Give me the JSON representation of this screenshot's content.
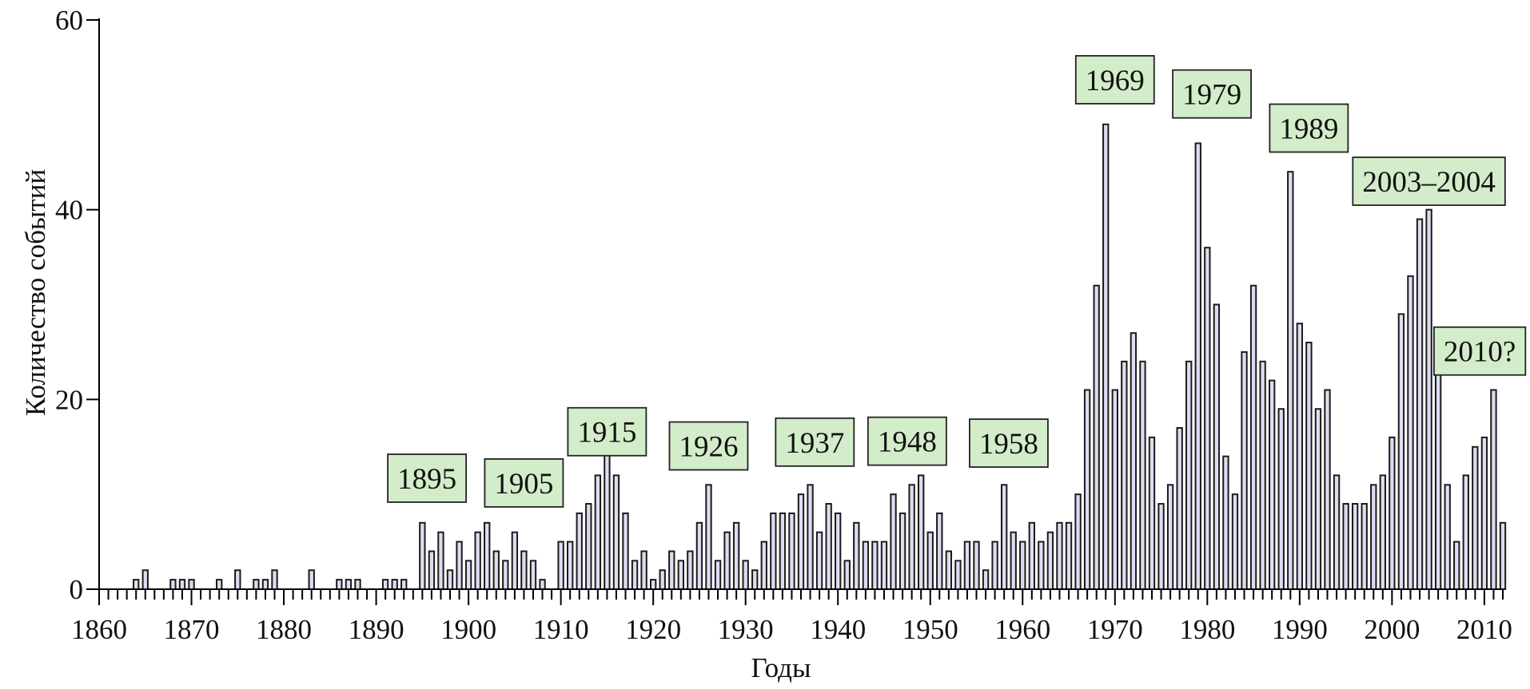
{
  "chart_data": {
    "type": "bar",
    "xlabel": "Годы",
    "ylabel": "Количество событий",
    "xlim": [
      1860,
      2012
    ],
    "ylim": [
      0,
      60
    ],
    "x_ticks": [
      1860,
      1870,
      1880,
      1890,
      1900,
      1910,
      1920,
      1930,
      1940,
      1950,
      1960,
      1970,
      1980,
      1990,
      2000,
      2010
    ],
    "y_ticks": [
      0,
      20,
      40,
      60
    ],
    "minor_x_tick_step": 1,
    "grid": false,
    "bar_color": "#dcdcf2",
    "annotation_color": "#d3ecc9",
    "points": [
      {
        "x": 1864,
        "y": 1
      },
      {
        "x": 1865,
        "y": 2
      },
      {
        "x": 1868,
        "y": 1
      },
      {
        "x": 1869,
        "y": 1
      },
      {
        "x": 1870,
        "y": 1
      },
      {
        "x": 1873,
        "y": 1
      },
      {
        "x": 1875,
        "y": 2
      },
      {
        "x": 1877,
        "y": 1
      },
      {
        "x": 1878,
        "y": 1
      },
      {
        "x": 1879,
        "y": 2
      },
      {
        "x": 1883,
        "y": 2
      },
      {
        "x": 1886,
        "y": 1
      },
      {
        "x": 1887,
        "y": 1
      },
      {
        "x": 1888,
        "y": 1
      },
      {
        "x": 1891,
        "y": 1
      },
      {
        "x": 1892,
        "y": 1
      },
      {
        "x": 1893,
        "y": 1
      },
      {
        "x": 1895,
        "y": 7
      },
      {
        "x": 1896,
        "y": 4
      },
      {
        "x": 1897,
        "y": 6
      },
      {
        "x": 1898,
        "y": 2
      },
      {
        "x": 1899,
        "y": 5
      },
      {
        "x": 1900,
        "y": 3
      },
      {
        "x": 1901,
        "y": 6
      },
      {
        "x": 1902,
        "y": 7
      },
      {
        "x": 1903,
        "y": 4
      },
      {
        "x": 1904,
        "y": 3
      },
      {
        "x": 1905,
        "y": 6
      },
      {
        "x": 1906,
        "y": 4
      },
      {
        "x": 1907,
        "y": 3
      },
      {
        "x": 1908,
        "y": 1
      },
      {
        "x": 1910,
        "y": 5
      },
      {
        "x": 1911,
        "y": 5
      },
      {
        "x": 1912,
        "y": 8
      },
      {
        "x": 1913,
        "y": 9
      },
      {
        "x": 1914,
        "y": 12
      },
      {
        "x": 1915,
        "y": 15
      },
      {
        "x": 1916,
        "y": 12
      },
      {
        "x": 1917,
        "y": 8
      },
      {
        "x": 1918,
        "y": 3
      },
      {
        "x": 1919,
        "y": 4
      },
      {
        "x": 1920,
        "y": 1
      },
      {
        "x": 1921,
        "y": 2
      },
      {
        "x": 1922,
        "y": 4
      },
      {
        "x": 1923,
        "y": 3
      },
      {
        "x": 1924,
        "y": 4
      },
      {
        "x": 1925,
        "y": 7
      },
      {
        "x": 1926,
        "y": 11
      },
      {
        "x": 1927,
        "y": 3
      },
      {
        "x": 1928,
        "y": 6
      },
      {
        "x": 1929,
        "y": 7
      },
      {
        "x": 1930,
        "y": 3
      },
      {
        "x": 1931,
        "y": 2
      },
      {
        "x": 1932,
        "y": 5
      },
      {
        "x": 1933,
        "y": 8
      },
      {
        "x": 1934,
        "y": 8
      },
      {
        "x": 1935,
        "y": 8
      },
      {
        "x": 1936,
        "y": 10
      },
      {
        "x": 1937,
        "y": 11
      },
      {
        "x": 1938,
        "y": 6
      },
      {
        "x": 1939,
        "y": 9
      },
      {
        "x": 1940,
        "y": 8
      },
      {
        "x": 1941,
        "y": 3
      },
      {
        "x": 1942,
        "y": 7
      },
      {
        "x": 1943,
        "y": 5
      },
      {
        "x": 1944,
        "y": 5
      },
      {
        "x": 1945,
        "y": 5
      },
      {
        "x": 1946,
        "y": 10
      },
      {
        "x": 1947,
        "y": 8
      },
      {
        "x": 1948,
        "y": 11
      },
      {
        "x": 1949,
        "y": 12
      },
      {
        "x": 1950,
        "y": 6
      },
      {
        "x": 1951,
        "y": 8
      },
      {
        "x": 1952,
        "y": 4
      },
      {
        "x": 1953,
        "y": 3
      },
      {
        "x": 1954,
        "y": 5
      },
      {
        "x": 1955,
        "y": 5
      },
      {
        "x": 1956,
        "y": 2
      },
      {
        "x": 1957,
        "y": 5
      },
      {
        "x": 1958,
        "y": 11
      },
      {
        "x": 1959,
        "y": 6
      },
      {
        "x": 1960,
        "y": 5
      },
      {
        "x": 1961,
        "y": 7
      },
      {
        "x": 1962,
        "y": 5
      },
      {
        "x": 1963,
        "y": 6
      },
      {
        "x": 1964,
        "y": 7
      },
      {
        "x": 1965,
        "y": 7
      },
      {
        "x": 1966,
        "y": 10
      },
      {
        "x": 1967,
        "y": 21
      },
      {
        "x": 1968,
        "y": 32
      },
      {
        "x": 1969,
        "y": 49
      },
      {
        "x": 1970,
        "y": 21
      },
      {
        "x": 1971,
        "y": 24
      },
      {
        "x": 1972,
        "y": 27
      },
      {
        "x": 1973,
        "y": 24
      },
      {
        "x": 1974,
        "y": 16
      },
      {
        "x": 1975,
        "y": 9
      },
      {
        "x": 1976,
        "y": 11
      },
      {
        "x": 1977,
        "y": 17
      },
      {
        "x": 1978,
        "y": 24
      },
      {
        "x": 1979,
        "y": 47
      },
      {
        "x": 1980,
        "y": 36
      },
      {
        "x": 1981,
        "y": 30
      },
      {
        "x": 1982,
        "y": 14
      },
      {
        "x": 1983,
        "y": 10
      },
      {
        "x": 1984,
        "y": 25
      },
      {
        "x": 1985,
        "y": 32
      },
      {
        "x": 1986,
        "y": 24
      },
      {
        "x": 1987,
        "y": 22
      },
      {
        "x": 1988,
        "y": 19
      },
      {
        "x": 1989,
        "y": 44
      },
      {
        "x": 1990,
        "y": 28
      },
      {
        "x": 1991,
        "y": 26
      },
      {
        "x": 1992,
        "y": 19
      },
      {
        "x": 1993,
        "y": 21
      },
      {
        "x": 1994,
        "y": 12
      },
      {
        "x": 1995,
        "y": 9
      },
      {
        "x": 1996,
        "y": 9
      },
      {
        "x": 1997,
        "y": 9
      },
      {
        "x": 1998,
        "y": 11
      },
      {
        "x": 1999,
        "y": 12
      },
      {
        "x": 2000,
        "y": 16
      },
      {
        "x": 2001,
        "y": 29
      },
      {
        "x": 2002,
        "y": 33
      },
      {
        "x": 2003,
        "y": 39
      },
      {
        "x": 2004,
        "y": 40
      },
      {
        "x": 2005,
        "y": 25
      },
      {
        "x": 2006,
        "y": 11
      },
      {
        "x": 2007,
        "y": 5
      },
      {
        "x": 2008,
        "y": 12
      },
      {
        "x": 2009,
        "y": 15
      },
      {
        "x": 2010,
        "y": 16
      },
      {
        "x": 2011,
        "y": 21
      },
      {
        "x": 2012,
        "y": 7
      }
    ],
    "annotations": [
      {
        "text": "1895",
        "x": 1895.5,
        "y": 11.7
      },
      {
        "text": "1905",
        "x": 1906.0,
        "y": 11.2
      },
      {
        "text": "1915",
        "x": 1915.0,
        "y": 16.6
      },
      {
        "text": "1926",
        "x": 1926.0,
        "y": 15.1
      },
      {
        "text": "1937",
        "x": 1937.5,
        "y": 15.5
      },
      {
        "text": "1948",
        "x": 1947.5,
        "y": 15.6
      },
      {
        "text": "1958",
        "x": 1958.5,
        "y": 15.4
      },
      {
        "text": "1969",
        "x": 1970.0,
        "y": 53.7
      },
      {
        "text": "1979",
        "x": 1980.5,
        "y": 52.2
      },
      {
        "text": "1989",
        "x": 1991.0,
        "y": 48.6
      },
      {
        "text": "2003–2004",
        "x": 2004.0,
        "y": 43.0
      },
      {
        "text": "2010?",
        "x": 2009.5,
        "y": 25.1
      }
    ]
  }
}
